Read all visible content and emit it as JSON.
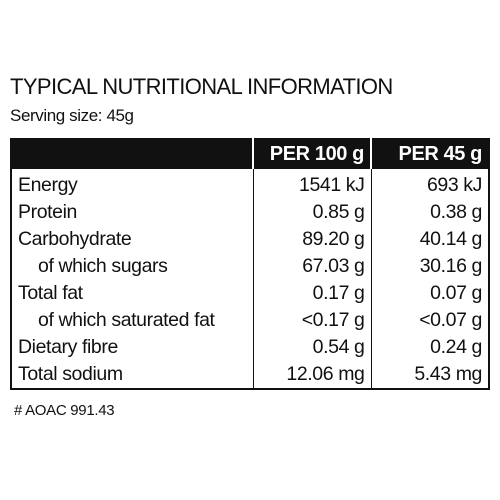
{
  "header": {
    "title": "TYPICAL NUTRITIONAL INFORMATION",
    "serving": "Serving size: 45g"
  },
  "table": {
    "columns": [
      "",
      "PER 100 g",
      "PER 45 g"
    ],
    "rows": [
      [
        "Energy",
        "1541 kJ",
        "693 kJ"
      ],
      [
        "Protein",
        "0.85 g",
        "0.38 g"
      ],
      [
        "Carbohydrate",
        "89.20 g",
        "40.14 g"
      ],
      [
        "of which sugars",
        "67.03 g",
        "30.16 g"
      ],
      [
        "Total fat",
        "0.17 g",
        "0.07 g"
      ],
      [
        "of which saturated fat",
        "<0.17 g",
        "<0.07 g"
      ],
      [
        "Dietary fibre",
        "0.54 g",
        "0.24 g"
      ],
      [
        "Total sodium",
        "12.06 mg",
        "5.43 mg"
      ]
    ]
  },
  "footnote": "# AOAC 991.43"
}
